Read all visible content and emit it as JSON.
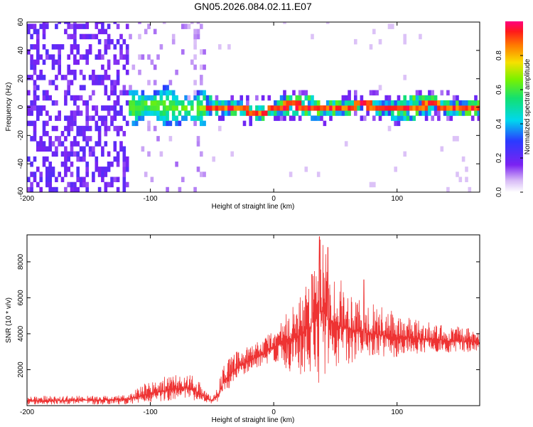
{
  "title": "GN05.2026.084.02.11.E07",
  "chart_data": [
    {
      "type": "heatmap",
      "title": "GN05.2026.084.02.11.E07",
      "xlabel": "Height of straight line (km)",
      "ylabel": "Frequency (Hz)",
      "xlim": [
        -200,
        167
      ],
      "ylim": [
        -60,
        60
      ],
      "xticks": [
        "-200",
        "-100",
        "0",
        "100"
      ],
      "xtick_values": [
        -200,
        -100,
        0,
        100
      ],
      "yticks": [
        "-60",
        "-40",
        "-20",
        "0",
        "20",
        "40",
        "60"
      ],
      "ytick_values": [
        -60,
        -40,
        -20,
        0,
        20,
        40,
        60
      ],
      "description_regions": [
        {
          "x_range": [
            -200,
            -118
          ],
          "freq_range": [
            -60,
            60
          ],
          "amplitude": 0.1,
          "pattern": "diffuse noise"
        },
        {
          "x_range": [
            -118,
            -55
          ],
          "freq_range": [
            -12,
            12
          ],
          "amplitude": 0.35,
          "pattern": "emerging signal"
        },
        {
          "x_range": [
            -55,
            167
          ],
          "freq_range": [
            -3,
            3
          ],
          "amplitude": 0.85,
          "pattern": "strong carrier near 0 Hz"
        }
      ],
      "colorbar": {
        "label": "Normalized spectral amplitude",
        "range": [
          0,
          1
        ],
        "ticks": [
          "0.0",
          "0.2",
          "0.4",
          "0.6",
          "0.8"
        ],
        "tick_values": [
          0,
          0.2,
          0.4,
          0.6,
          0.8
        ]
      }
    },
    {
      "type": "line",
      "xlabel": "Height of straight line (km)",
      "ylabel": "SNR (10 * v/v)",
      "xlim": [
        -200,
        167
      ],
      "ylim": [
        0,
        9500
      ],
      "xticks": [
        "-200",
        "-100",
        "0",
        "100"
      ],
      "xtick_values": [
        -200,
        -100,
        0,
        100
      ],
      "yticks": [
        "2000",
        "4000",
        "6000",
        "8000"
      ],
      "ytick_values": [
        2000,
        4000,
        6000,
        8000
      ],
      "color": "#ee3333",
      "series": [
        {
          "name": "SNR",
          "x": [
            -200,
            -180,
            -160,
            -140,
            -120,
            -110,
            -100,
            -90,
            -80,
            -70,
            -60,
            -55,
            -50,
            -45,
            -40,
            -30,
            -20,
            -10,
            0,
            10,
            20,
            30,
            35,
            40,
            50,
            60,
            70,
            80,
            90,
            100,
            110,
            120,
            130,
            140,
            150,
            160,
            167
          ],
          "values": [
            250,
            280,
            300,
            320,
            350,
            500,
            650,
            800,
            950,
            1000,
            700,
            400,
            300,
            600,
            1400,
            2100,
            2500,
            2800,
            3300,
            3500,
            3900,
            4400,
            5500,
            5200,
            4500,
            4300,
            4100,
            4000,
            3900,
            3800,
            3800,
            3700,
            3700,
            3600,
            3600,
            3550,
            3500
          ],
          "envelope_min": [
            60,
            60,
            60,
            60,
            60,
            120,
            200,
            250,
            300,
            300,
            200,
            150,
            100,
            150,
            600,
            1500,
            1900,
            2200,
            2500,
            2000,
            1700,
            1400,
            700,
            800,
            1900,
            2300,
            2500,
            2600,
            2700,
            2700,
            2800,
            2800,
            2900,
            2900,
            2950,
            3000,
            2950
          ],
          "envelope_max": [
            550,
            550,
            550,
            550,
            600,
            1000,
            1400,
            1600,
            1700,
            1800,
            1500,
            800,
            500,
            1200,
            2400,
            3000,
            3300,
            3800,
            4300,
            5200,
            6000,
            7000,
            9500,
            9000,
            7300,
            6700,
            6200,
            5700,
            5400,
            5200,
            4900,
            4700,
            4600,
            4500,
            4400,
            4300,
            4200
          ],
          "peaks": [
            {
              "x": 37,
              "value": 9400
            },
            {
              "x": 44,
              "value": 8800
            },
            {
              "x": 31,
              "value": 7300
            },
            {
              "x": 73,
              "value": 7000
            }
          ]
        }
      ]
    }
  ]
}
